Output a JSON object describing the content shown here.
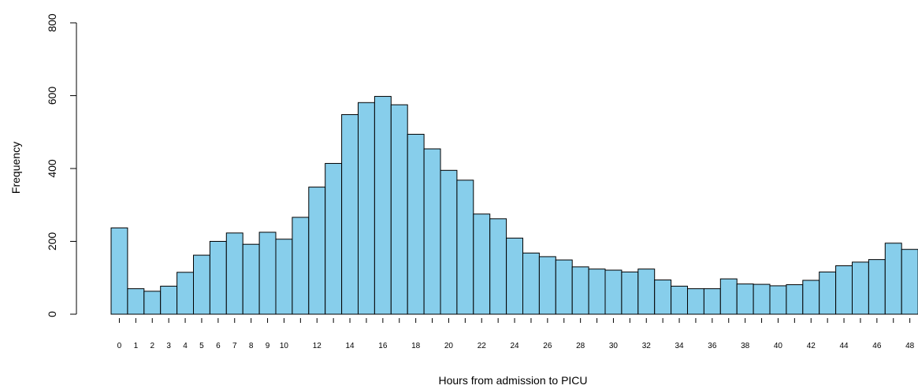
{
  "chart_data": {
    "type": "bar",
    "title": "",
    "xlabel": "Hours from admission to PICU",
    "ylabel": "Frequency",
    "ylim": [
      0,
      800
    ],
    "yticks": [
      0,
      200,
      400,
      600,
      800
    ],
    "bar_color": "#87ceeb",
    "edge_color": "#000000",
    "grid": false,
    "categories": [
      "0",
      "1",
      "2",
      "3",
      "4",
      "5",
      "6",
      "7",
      "8",
      "9",
      "10",
      "11",
      "12",
      "13",
      "14",
      "15",
      "16",
      "17",
      "18",
      "19",
      "20",
      "21",
      "22",
      "23",
      "24",
      "25",
      "26",
      "27",
      "28",
      "29",
      "30",
      "31",
      "32",
      "33",
      "34",
      "35",
      "36",
      "37",
      "38",
      "39",
      "40",
      "41",
      "42",
      "43",
      "44",
      "45",
      "46",
      "47",
      "48"
    ],
    "x_tick_labels": [
      "0",
      "1",
      "2",
      "3",
      "4",
      "5",
      "6",
      "7",
      "8",
      "9",
      "10",
      "",
      "12",
      "",
      "14",
      "",
      "16",
      "",
      "18",
      "",
      "20",
      "",
      "22",
      "",
      "24",
      "",
      "26",
      "",
      "28",
      "",
      "30",
      "",
      "32",
      "",
      "34",
      "",
      "36",
      "",
      "38",
      "",
      "40",
      "",
      "42",
      "",
      "44",
      "",
      "46",
      "",
      "48"
    ],
    "values": [
      237,
      70,
      63,
      77,
      115,
      162,
      200,
      223,
      192,
      225,
      206,
      266,
      349,
      414,
      548,
      581,
      598,
      575,
      494,
      454,
      395,
      368,
      275,
      262,
      209,
      168,
      158,
      149,
      130,
      124,
      121,
      116,
      124,
      94,
      77,
      70,
      70,
      97,
      83,
      82,
      78,
      81,
      93,
      116,
      133,
      143,
      150,
      195,
      178
    ]
  }
}
